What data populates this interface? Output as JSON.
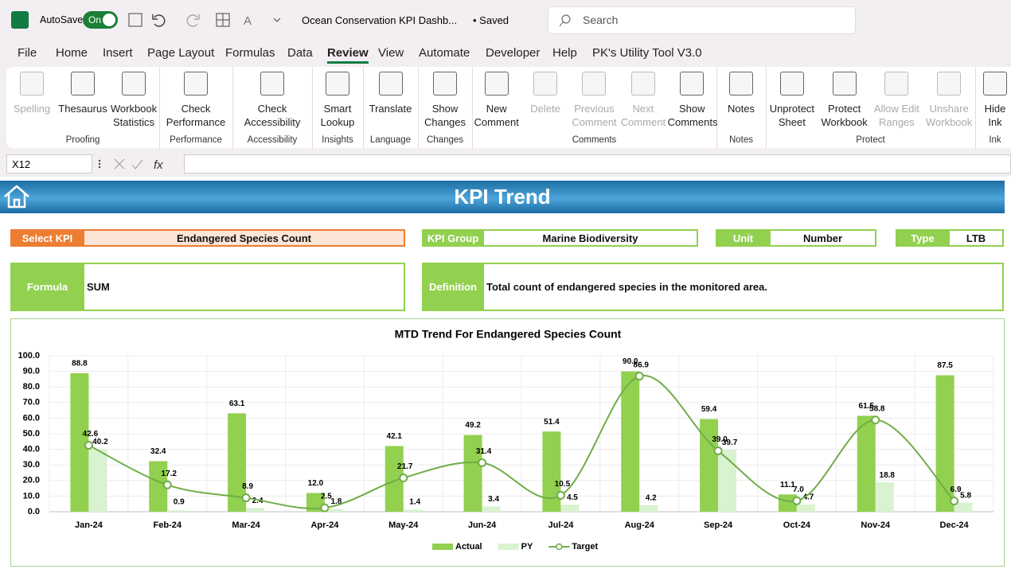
{
  "title_bar": {
    "autosave": "AutoSave",
    "toggle": "On",
    "file_name": "Ocean Conservation KPI Dashb...",
    "status": "• Saved",
    "search": "Search"
  },
  "menu": {
    "tabs": [
      "File",
      "Home",
      "Insert",
      "Page Layout",
      "Formulas",
      "Data",
      "Review",
      "View",
      "Automate",
      "Developer",
      "Help",
      "PK's Utility Tool V3.0"
    ],
    "active": 6
  },
  "ribbon": {
    "groups": [
      {
        "label": "Proofing",
        "buttons": [
          {
            "lines": [
              "Spelling"
            ],
            "disabled": true
          },
          {
            "lines": [
              "Thesaurus"
            ]
          },
          {
            "lines": [
              "Workbook",
              "Statistics"
            ]
          }
        ]
      },
      {
        "label": "Performance",
        "buttons": [
          {
            "lines": [
              "Check",
              "Performance"
            ]
          }
        ]
      },
      {
        "label": "Accessibility",
        "buttons": [
          {
            "lines": [
              "Check",
              "Accessibility"
            ]
          }
        ]
      },
      {
        "label": "Insights",
        "buttons": [
          {
            "lines": [
              "Smart",
              "Lookup"
            ]
          }
        ]
      },
      {
        "label": "Language",
        "buttons": [
          {
            "lines": [
              "Translate"
            ]
          }
        ]
      },
      {
        "label": "Changes",
        "buttons": [
          {
            "lines": [
              "Show",
              "Changes"
            ]
          }
        ]
      },
      {
        "label": "Comments",
        "buttons": [
          {
            "lines": [
              "New",
              "Comment"
            ]
          },
          {
            "lines": [
              "Delete"
            ],
            "disabled": true
          },
          {
            "lines": [
              "Previous",
              "Comment"
            ],
            "disabled": true
          },
          {
            "lines": [
              "Next",
              "Comment"
            ],
            "disabled": true
          },
          {
            "lines": [
              "Show",
              "Comments"
            ]
          }
        ]
      },
      {
        "label": "Notes",
        "buttons": [
          {
            "lines": [
              "Notes"
            ]
          }
        ]
      },
      {
        "label": "Protect",
        "buttons": [
          {
            "lines": [
              "Unprotect",
              "Sheet"
            ]
          },
          {
            "lines": [
              "Protect",
              "Workbook"
            ]
          },
          {
            "lines": [
              "Allow Edit",
              "Ranges"
            ],
            "disabled": true
          },
          {
            "lines": [
              "Unshare",
              "Workbook"
            ],
            "disabled": true
          }
        ]
      },
      {
        "label": "Ink",
        "buttons": [
          {
            "lines": [
              "Hide",
              "Ink"
            ]
          }
        ]
      }
    ]
  },
  "formula_bar": {
    "name_box": "X12",
    "fx": "fx"
  },
  "dashboard": {
    "title": "KPI Trend",
    "fields": [
      {
        "label": "Select KPI",
        "value": "Endangered Species Count",
        "color": "#ed7d31"
      },
      {
        "label": "KPI Group",
        "value": "Marine Biodiversity",
        "color": "#92d050"
      },
      {
        "label": "Unit",
        "value": "Number",
        "color": "#92d050"
      },
      {
        "label": "Type",
        "value": "LTB",
        "color": "#92d050"
      },
      {
        "label": "Formula",
        "value": "SUM",
        "color": "#92d050"
      },
      {
        "label": "Definition",
        "value": "Total count of endangered species in the monitored area.",
        "color": "#92d050"
      }
    ]
  },
  "chart_data": {
    "type": "bar",
    "title": "MTD Trend For Endangered Species Count",
    "categories": [
      "Jan-24",
      "Feb-24",
      "Mar-24",
      "Apr-24",
      "May-24",
      "Jun-24",
      "Jul-24",
      "Aug-24",
      "Sep-24",
      "Oct-24",
      "Nov-24",
      "Dec-24"
    ],
    "series": [
      {
        "name": "Actual",
        "type": "bar",
        "color": "#92d050",
        "values": [
          88.8,
          32.4,
          63.1,
          12.0,
          42.1,
          49.2,
          51.4,
          90.0,
          59.4,
          11.1,
          61.5,
          87.5
        ],
        "value_labels": [
          "88.8",
          "32.4",
          "63.1",
          "12.0",
          "42.1",
          "49.2",
          "51.4",
          "90.0",
          "59.4",
          "11.1",
          "61.5",
          "87.5"
        ]
      },
      {
        "name": "PY",
        "type": "bar",
        "color": "#d9f2d0",
        "values": [
          40.2,
          0.9,
          2.4,
          1.8,
          1.4,
          3.4,
          4.5,
          4.2,
          39.7,
          4.7,
          18.8,
          5.8
        ],
        "value_labels": [
          "40.2",
          "0.9",
          "2.4",
          "1.8",
          "1.4",
          "3.4",
          "4.5",
          "4.2",
          "39.7",
          "4.7",
          "18.8",
          "5.8"
        ]
      },
      {
        "name": "Target",
        "type": "line",
        "color": "#70ad47",
        "values": [
          42.6,
          17.2,
          8.9,
          2.5,
          21.7,
          31.4,
          10.5,
          86.9,
          39.0,
          7.0,
          58.8,
          6.9
        ],
        "value_labels": [
          "42.6",
          "17.2",
          "8.9",
          "2.5",
          "21.7",
          "31.4",
          "10.5",
          "86.9",
          "39.0",
          "7.0",
          "58.8",
          "6.9"
        ]
      }
    ],
    "ylim": [
      0,
      100
    ],
    "yticks": [
      {
        "value": 0,
        "label": "0.0"
      },
      {
        "value": 10,
        "label": "10.0"
      },
      {
        "value": 20,
        "label": "20.0"
      },
      {
        "value": 30,
        "label": "30.0"
      },
      {
        "value": 40,
        "label": "40.0"
      },
      {
        "value": 50,
        "label": "50.0"
      },
      {
        "value": 60,
        "label": "60.0"
      },
      {
        "value": 70,
        "label": "70.0"
      },
      {
        "value": 80,
        "label": "80.0"
      },
      {
        "value": 90,
        "label": "90.0"
      },
      {
        "value": 100,
        "label": "100.0"
      }
    ],
    "grid": true,
    "legend": "bottom"
  }
}
